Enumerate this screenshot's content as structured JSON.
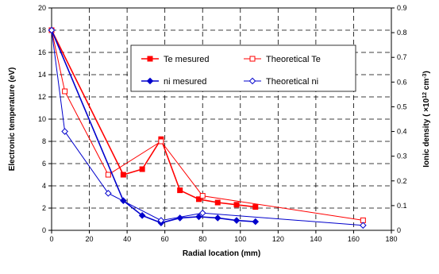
{
  "chart_data": {
    "type": "line",
    "title": "",
    "xlabel": "Radial location (mm)",
    "ylabel_left": "Electronic temperature (eV)",
    "ylabel_right": {
      "prefix": "Ionic density ( ×10",
      "exp1": "12",
      "mid": " cm",
      "exp2": "-3",
      "suffix": ")"
    },
    "xlim": [
      0,
      180
    ],
    "ylim_left": [
      0,
      20
    ],
    "ylim_right": [
      0,
      0.9
    ],
    "x_ticks": [
      "0",
      "20",
      "40",
      "60",
      "80",
      "100",
      "120",
      "140",
      "160",
      "180"
    ],
    "y_ticks_left": [
      "0",
      "2",
      "4",
      "6",
      "8",
      "10",
      "12",
      "14",
      "16",
      "18",
      "20"
    ],
    "y_ticks_right": [
      "0",
      "0.1",
      "0.2",
      "0.3",
      "0.4",
      "0.5",
      "0.6",
      "0.7",
      "0.8",
      "0.9"
    ],
    "grid": true,
    "legend_position": "upper-right",
    "series": [
      {
        "name": "Te mesured",
        "axis": "left",
        "color": "#ff0000",
        "marker": "square-filled",
        "x": [
          0,
          38,
          48,
          58,
          68,
          78,
          88,
          98,
          108
        ],
        "y": [
          18,
          5.0,
          5.5,
          8.2,
          3.6,
          2.8,
          2.5,
          2.3,
          2.1
        ]
      },
      {
        "name": "Theoretical Te",
        "axis": "left",
        "color": "#ff0000",
        "marker": "square-open",
        "x": [
          0,
          7,
          30,
          58,
          80,
          165
        ],
        "y": [
          18,
          12.5,
          5.0,
          8.0,
          3.1,
          0.9
        ]
      },
      {
        "name": "ni mesured",
        "axis": "right",
        "color": "#0000cc",
        "marker": "diamond-filled",
        "x": [
          0,
          38,
          48,
          58,
          68,
          78,
          88,
          98,
          108
        ],
        "y": [
          0.81,
          0.12,
          0.06,
          0.03,
          0.05,
          0.055,
          0.05,
          0.04,
          0.035
        ]
      },
      {
        "name": "Theoretical ni",
        "axis": "right",
        "color": "#0000cc",
        "marker": "diamond-open",
        "x": [
          0,
          7,
          30,
          58,
          80,
          165
        ],
        "y": [
          0.81,
          0.4,
          0.15,
          0.04,
          0.07,
          0.02
        ]
      }
    ]
  }
}
